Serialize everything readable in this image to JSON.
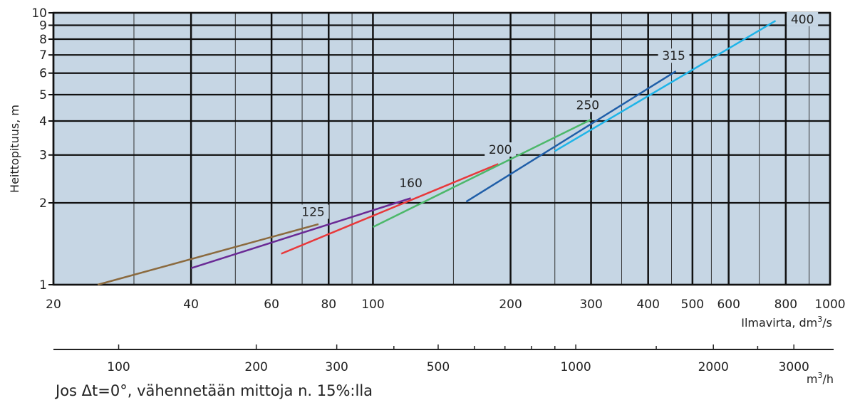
{
  "chart_data": {
    "type": "line",
    "x_scale": "log",
    "y_scale": "log",
    "xlim": [
      20,
      1000
    ],
    "ylim": [
      1,
      10
    ],
    "grid": true,
    "ylabel": "Heittopituus, m",
    "xlabel": "Ilmavirta, dm³/s",
    "xlabel_parts": {
      "pre": "Ilmavirta, dm",
      "sup": "3",
      "post": "/s"
    },
    "x_major_ticks": [
      20,
      40,
      60,
      80,
      100,
      200,
      300,
      400,
      500,
      600,
      800,
      1000
    ],
    "x_tick_labels": [
      "20",
      "40",
      "60",
      "80",
      "100",
      "200",
      "300",
      "400",
      "500",
      "600",
      "800",
      "1000"
    ],
    "x_minor_ticks": [
      30,
      50,
      70,
      90,
      150,
      250,
      350,
      450,
      550,
      700,
      900
    ],
    "y_ticks": [
      1,
      2,
      3,
      4,
      5,
      6,
      7,
      8,
      9,
      10
    ],
    "y_tick_labels": [
      "1",
      "2",
      "3",
      "4",
      "5",
      "6",
      "7",
      "8",
      "9",
      "10"
    ],
    "secondary_axis": {
      "label": "m³/h",
      "label_parts": {
        "pre": "m",
        "sup": "3",
        "post": "/h"
      },
      "ticks": [
        100,
        200,
        300,
        500,
        1000,
        2000,
        3000
      ],
      "tick_labels": [
        "100",
        "200",
        "300",
        "500",
        "1000",
        "2000",
        "3000"
      ],
      "minor_ticks": [
        400,
        600,
        700,
        800,
        900,
        1500,
        2500
      ],
      "factor": 3.6
    },
    "series": [
      {
        "name": "125",
        "color": "#8B6A3E",
        "points": [
          [
            25,
            1.0
          ],
          [
            76,
            1.67
          ]
        ],
        "label_at": [
          74,
          1.8
        ]
      },
      {
        "name": "160",
        "color": "#6A2A95",
        "points": [
          [
            40,
            1.15
          ],
          [
            121,
            2.08
          ]
        ],
        "label_at": [
          121,
          2.3
        ]
      },
      {
        "name": "200",
        "color": "#E8383A",
        "points": [
          [
            63,
            1.3
          ],
          [
            188,
            2.78
          ]
        ],
        "label_at": [
          190,
          3.05
        ]
      },
      {
        "name": "250",
        "color": "#4CB86A",
        "points": [
          [
            100,
            1.63
          ],
          [
            300,
            4.05
          ]
        ],
        "label_at": [
          295,
          4.45
        ]
      },
      {
        "name": "315",
        "color": "#1F5EA8",
        "points": [
          [
            160,
            2.02
          ],
          [
            460,
            6.1
          ]
        ],
        "label_at": [
          455,
          6.75
        ]
      },
      {
        "name": "400",
        "color": "#1EB4E8",
        "points": [
          [
            250,
            3.1
          ],
          [
            760,
            9.35
          ]
        ],
        "label_at": [
          870,
          9.2
        ]
      }
    ]
  },
  "note": "Jos Δt=0°, vähennetään mittoja n. 15%:lla",
  "colors": {
    "plot_background": "#C6D6E4",
    "grid_major": "#111111",
    "grid_minor": "#333333"
  }
}
